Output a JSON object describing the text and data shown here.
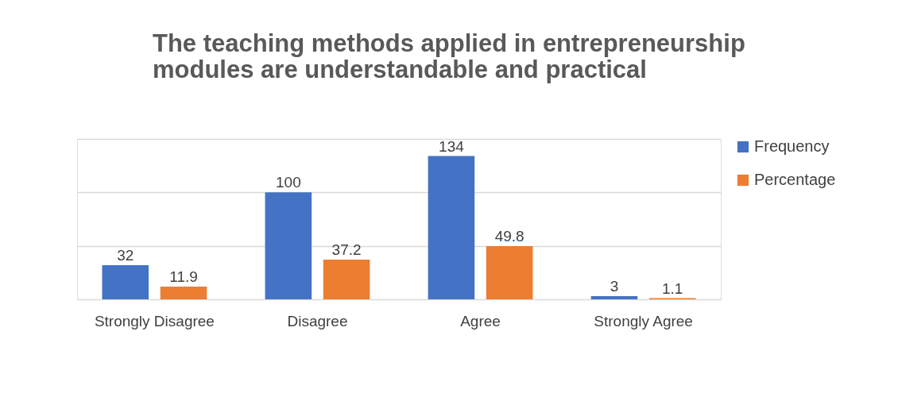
{
  "chart_data": {
    "type": "bar",
    "title": "The teaching methods applied in entrepreneurship modules are understandable and practical",
    "categories": [
      "Strongly Disagree",
      "Disagree",
      "Agree",
      "Strongly Agree"
    ],
    "series": [
      {
        "name": "Frequency",
        "color": "#4472c4",
        "values": [
          32,
          100,
          134,
          3
        ]
      },
      {
        "name": "Percentage",
        "color": "#ed7d31",
        "values": [
          11.9,
          37.2,
          49.8,
          1.1
        ]
      }
    ],
    "ylim": [
      0,
      150
    ],
    "yticks": [
      {
        "value": 0,
        "label": null
      },
      {
        "value": 50,
        "label": null
      },
      {
        "value": 100,
        "label": null
      },
      {
        "value": 150,
        "label": null
      }
    ],
    "tick_labels": "x",
    "grid": "y",
    "legend": "right",
    "data_labels": true
  }
}
